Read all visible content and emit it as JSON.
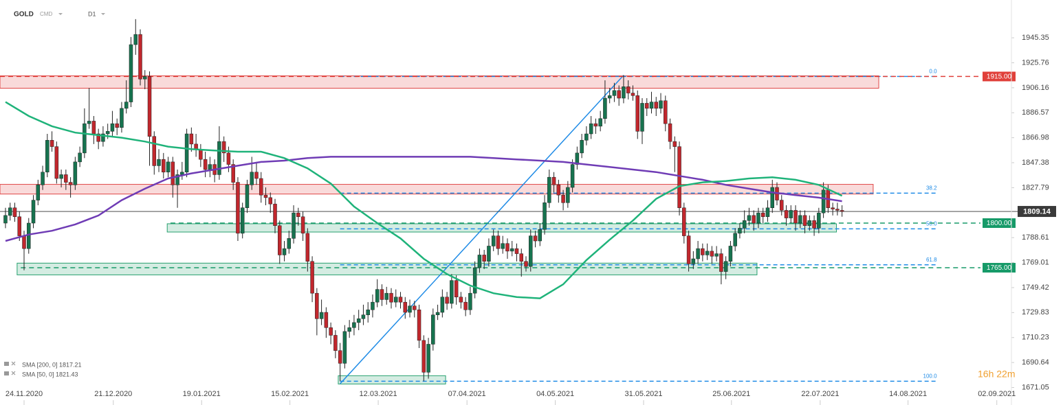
{
  "chart_data": {
    "type": "candlestick",
    "symbol": "GOLD",
    "source": "CMD",
    "timeframe": "D1",
    "timer": "16h 22m",
    "xlim": [
      -1.18,
      216.3
    ],
    "ylim": [
      1665.4,
      1975
    ],
    "yticks": [
      1945.35,
      1925.76,
      1906.16,
      1886.57,
      1866.98,
      1847.38,
      1827.79,
      1788.61,
      1769.01,
      1749.42,
      1729.83,
      1710.23,
      1690.64,
      1671.05
    ],
    "xticks": [
      {
        "value": 4,
        "label": "24.11.2020"
      },
      {
        "value": 23.2,
        "label": "21.12.2020"
      },
      {
        "value": 42.2,
        "label": "19.01.2021"
      },
      {
        "value": 61.2,
        "label": "15.02.2021"
      },
      {
        "value": 80.2,
        "label": "12.03.2021"
      },
      {
        "value": 99.3,
        "label": "07.04.2021"
      },
      {
        "value": 118.3,
        "label": "04.05.2021"
      },
      {
        "value": 137.3,
        "label": "31.05.2021"
      },
      {
        "value": 156.2,
        "label": "25.06.2021"
      },
      {
        "value": 175.3,
        "label": "22.07.2021"
      },
      {
        "value": 194.2,
        "label": "14.08.2021"
      },
      {
        "value": 213.3,
        "label": "02.09.2021"
      }
    ],
    "up_color": "#17734f",
    "down_color": "#c1272d",
    "ohlc": [
      [
        1800,
        1812,
        1796,
        1806
      ],
      [
        1806,
        1816,
        1802,
        1812
      ],
      [
        1812,
        1816,
        1801,
        1805
      ],
      [
        1805,
        1809,
        1786,
        1790
      ],
      [
        1790,
        1794,
        1763,
        1780
      ],
      [
        1780,
        1804,
        1776,
        1800
      ],
      [
        1800,
        1822,
        1796,
        1818
      ],
      [
        1818,
        1834,
        1814,
        1830
      ],
      [
        1830,
        1845,
        1826,
        1840
      ],
      [
        1840,
        1870,
        1836,
        1865
      ],
      [
        1865,
        1872,
        1856,
        1860
      ],
      [
        1860,
        1864,
        1831,
        1835
      ],
      [
        1835,
        1842,
        1828,
        1838
      ],
      [
        1838,
        1842,
        1826,
        1832
      ],
      [
        1832,
        1836,
        1820,
        1830
      ],
      [
        1830,
        1852,
        1826,
        1848
      ],
      [
        1848,
        1860,
        1844,
        1855
      ],
      [
        1855,
        1890,
        1851,
        1878
      ],
      [
        1878,
        1906,
        1874,
        1880
      ],
      [
        1880,
        1884,
        1862,
        1870
      ],
      [
        1870,
        1874,
        1858,
        1864
      ],
      [
        1864,
        1876,
        1860,
        1870
      ],
      [
        1870,
        1878,
        1866,
        1872
      ],
      [
        1872,
        1888,
        1868,
        1878
      ],
      [
        1878,
        1882,
        1869,
        1875
      ],
      [
        1875,
        1895,
        1871,
        1890
      ],
      [
        1890,
        1912,
        1886,
        1895
      ],
      [
        1895,
        1946,
        1891,
        1940
      ],
      [
        1940,
        1960,
        1932,
        1948
      ],
      [
        1948,
        1952,
        1908,
        1913
      ],
      [
        1913,
        1920,
        1905,
        1915
      ],
      [
        1915,
        1919,
        1845,
        1868
      ],
      [
        1868,
        1872,
        1838,
        1845
      ],
      [
        1845,
        1858,
        1840,
        1850
      ],
      [
        1850,
        1855,
        1835,
        1840
      ],
      [
        1840,
        1852,
        1836,
        1848
      ],
      [
        1848,
        1852,
        1820,
        1830
      ],
      [
        1830,
        1842,
        1812,
        1838
      ],
      [
        1838,
        1848,
        1834,
        1840
      ],
      [
        1840,
        1874,
        1836,
        1870
      ],
      [
        1870,
        1875,
        1856,
        1862
      ],
      [
        1862,
        1870,
        1852,
        1858
      ],
      [
        1858,
        1862,
        1844,
        1850
      ],
      [
        1850,
        1856,
        1836,
        1842
      ],
      [
        1842,
        1852,
        1836,
        1846
      ],
      [
        1846,
        1850,
        1832,
        1838
      ],
      [
        1838,
        1876,
        1834,
        1864
      ],
      [
        1864,
        1868,
        1848,
        1855
      ],
      [
        1855,
        1860,
        1840,
        1846
      ],
      [
        1846,
        1850,
        1826,
        1832
      ],
      [
        1832,
        1836,
        1786,
        1792
      ],
      [
        1792,
        1816,
        1788,
        1812
      ],
      [
        1812,
        1834,
        1808,
        1830
      ],
      [
        1830,
        1852,
        1826,
        1840
      ],
      [
        1840,
        1848,
        1830,
        1835
      ],
      [
        1835,
        1840,
        1816,
        1822
      ],
      [
        1822,
        1828,
        1814,
        1820
      ],
      [
        1820,
        1824,
        1808,
        1815
      ],
      [
        1815,
        1819,
        1792,
        1798
      ],
      [
        1798,
        1802,
        1768,
        1775
      ],
      [
        1775,
        1786,
        1770,
        1780
      ],
      [
        1780,
        1794,
        1776,
        1788
      ],
      [
        1788,
        1814,
        1784,
        1808
      ],
      [
        1808,
        1812,
        1798,
        1805
      ],
      [
        1805,
        1809,
        1786,
        1792
      ],
      [
        1792,
        1796,
        1762,
        1770
      ],
      [
        1770,
        1774,
        1738,
        1745
      ],
      [
        1745,
        1749,
        1712,
        1725
      ],
      [
        1725,
        1740,
        1720,
        1730
      ],
      [
        1730,
        1734,
        1710,
        1718
      ],
      [
        1718,
        1722,
        1705,
        1712
      ],
      [
        1712,
        1716,
        1694,
        1700
      ],
      [
        1700,
        1706,
        1676,
        1690
      ],
      [
        1690,
        1720,
        1686,
        1715
      ],
      [
        1715,
        1724,
        1710,
        1718
      ],
      [
        1718,
        1728,
        1712,
        1722
      ],
      [
        1722,
        1732,
        1716,
        1725
      ],
      [
        1725,
        1736,
        1720,
        1728
      ],
      [
        1728,
        1738,
        1722,
        1732
      ],
      [
        1732,
        1744,
        1726,
        1738
      ],
      [
        1738,
        1756,
        1734,
        1748
      ],
      [
        1748,
        1752,
        1735,
        1740
      ],
      [
        1740,
        1750,
        1736,
        1745
      ],
      [
        1745,
        1749,
        1733,
        1738
      ],
      [
        1738,
        1748,
        1734,
        1742
      ],
      [
        1742,
        1746,
        1733,
        1738
      ],
      [
        1738,
        1742,
        1725,
        1730
      ],
      [
        1730,
        1740,
        1726,
        1735
      ],
      [
        1735,
        1739,
        1726,
        1732
      ],
      [
        1732,
        1736,
        1702,
        1708
      ],
      [
        1708,
        1712,
        1676,
        1683
      ],
      [
        1683,
        1710,
        1678,
        1705
      ],
      [
        1705,
        1733,
        1700,
        1728
      ],
      [
        1728,
        1736,
        1724,
        1730
      ],
      [
        1730,
        1748,
        1726,
        1742
      ],
      [
        1742,
        1746,
        1732,
        1737
      ],
      [
        1737,
        1760,
        1733,
        1755
      ],
      [
        1755,
        1759,
        1736,
        1742
      ],
      [
        1742,
        1746,
        1733,
        1738
      ],
      [
        1738,
        1742,
        1727,
        1732
      ],
      [
        1732,
        1750,
        1728,
        1745
      ],
      [
        1745,
        1770,
        1741,
        1765
      ],
      [
        1765,
        1780,
        1761,
        1775
      ],
      [
        1775,
        1779,
        1764,
        1770
      ],
      [
        1770,
        1788,
        1766,
        1782
      ],
      [
        1782,
        1795,
        1778,
        1790
      ],
      [
        1790,
        1794,
        1775,
        1780
      ],
      [
        1780,
        1790,
        1776,
        1784
      ],
      [
        1784,
        1788,
        1772,
        1778
      ],
      [
        1778,
        1786,
        1774,
        1780
      ],
      [
        1780,
        1784,
        1770,
        1776
      ],
      [
        1776,
        1780,
        1758,
        1770
      ],
      [
        1770,
        1774,
        1762,
        1766
      ],
      [
        1766,
        1795,
        1762,
        1790
      ],
      [
        1790,
        1794,
        1781,
        1786
      ],
      [
        1786,
        1800,
        1782,
        1795
      ],
      [
        1795,
        1822,
        1791,
        1816
      ],
      [
        1816,
        1842,
        1812,
        1836
      ],
      [
        1836,
        1840,
        1824,
        1830
      ],
      [
        1830,
        1834,
        1816,
        1822
      ],
      [
        1822,
        1826,
        1810,
        1816
      ],
      [
        1816,
        1833,
        1812,
        1828
      ],
      [
        1828,
        1850,
        1824,
        1846
      ],
      [
        1846,
        1860,
        1842,
        1855
      ],
      [
        1855,
        1870,
        1851,
        1865
      ],
      [
        1865,
        1876,
        1861,
        1870
      ],
      [
        1870,
        1884,
        1866,
        1878
      ],
      [
        1878,
        1882,
        1870,
        1876
      ],
      [
        1876,
        1888,
        1872,
        1882
      ],
      [
        1882,
        1912,
        1878,
        1898
      ],
      [
        1898,
        1906,
        1894,
        1900
      ],
      [
        1900,
        1910,
        1895,
        1904
      ],
      [
        1904,
        1908,
        1892,
        1898
      ],
      [
        1898,
        1916,
        1894,
        1907
      ],
      [
        1907,
        1912,
        1897,
        1902
      ],
      [
        1902,
        1908,
        1896,
        1900
      ],
      [
        1900,
        1904,
        1866,
        1872
      ],
      [
        1872,
        1898,
        1862,
        1894
      ],
      [
        1894,
        1898,
        1884,
        1890
      ],
      [
        1890,
        1903,
        1886,
        1895
      ],
      [
        1895,
        1899,
        1884,
        1890
      ],
      [
        1890,
        1902,
        1886,
        1896
      ],
      [
        1896,
        1900,
        1872,
        1878
      ],
      [
        1878,
        1882,
        1858,
        1864
      ],
      [
        1864,
        1868,
        1840,
        1860
      ],
      [
        1860,
        1864,
        1806,
        1812
      ],
      [
        1812,
        1816,
        1784,
        1790
      ],
      [
        1790,
        1794,
        1762,
        1768
      ],
      [
        1768,
        1778,
        1764,
        1772
      ],
      [
        1772,
        1786,
        1768,
        1780
      ],
      [
        1780,
        1784,
        1770,
        1775
      ],
      [
        1775,
        1784,
        1771,
        1778
      ],
      [
        1778,
        1782,
        1768,
        1774
      ],
      [
        1774,
        1782,
        1770,
        1776
      ],
      [
        1776,
        1780,
        1752,
        1762
      ],
      [
        1762,
        1774,
        1756,
        1770
      ],
      [
        1770,
        1786,
        1766,
        1782
      ],
      [
        1782,
        1796,
        1778,
        1792
      ],
      [
        1792,
        1800,
        1788,
        1796
      ],
      [
        1796,
        1810,
        1792,
        1802
      ],
      [
        1802,
        1812,
        1798,
        1806
      ],
      [
        1806,
        1810,
        1794,
        1800
      ],
      [
        1800,
        1812,
        1796,
        1808
      ],
      [
        1808,
        1812,
        1800,
        1805
      ],
      [
        1805,
        1818,
        1801,
        1812
      ],
      [
        1812,
        1834,
        1808,
        1828
      ],
      [
        1828,
        1832,
        1814,
        1818
      ],
      [
        1818,
        1822,
        1806,
        1810
      ],
      [
        1810,
        1814,
        1798,
        1804
      ],
      [
        1804,
        1814,
        1800,
        1810
      ],
      [
        1810,
        1814,
        1794,
        1800
      ],
      [
        1800,
        1810,
        1796,
        1806
      ],
      [
        1806,
        1810,
        1792,
        1798
      ],
      [
        1798,
        1806,
        1794,
        1802
      ],
      [
        1802,
        1806,
        1790,
        1796
      ],
      [
        1796,
        1812,
        1792,
        1808
      ],
      [
        1808,
        1832,
        1804,
        1826
      ],
      [
        1826,
        1830,
        1808,
        1812
      ],
      [
        1812,
        1816,
        1806,
        1811
      ],
      [
        1811,
        1816,
        1806,
        1810
      ],
      [
        1810,
        1814,
        1805,
        1809.14
      ]
    ],
    "series": [
      {
        "name": "SMA [200, 0] 1817.21",
        "color": "#6f3cb5",
        "x": [
          0,
          5,
          10,
          15,
          20,
          25,
          30,
          35,
          40,
          45,
          50,
          55,
          60,
          65,
          70,
          75,
          80,
          85,
          90,
          95,
          100,
          105,
          110,
          115,
          120,
          125,
          130,
          135,
          140,
          145,
          150,
          155,
          160,
          165,
          170,
          175,
          180
        ],
        "values": [
          1786,
          1791,
          1794,
          1799,
          1806,
          1818,
          1827,
          1835,
          1839,
          1842,
          1845,
          1848,
          1849,
          1851,
          1852,
          1852,
          1852,
          1852,
          1852,
          1852,
          1852,
          1851,
          1850,
          1849,
          1848,
          1846,
          1844,
          1842,
          1840,
          1837,
          1834,
          1830,
          1827,
          1824,
          1822,
          1820,
          1817.21
        ]
      },
      {
        "name": "SMA [50, 0] 1821.43",
        "color": "#1fb37a",
        "x": [
          0,
          5,
          10,
          15,
          20,
          25,
          30,
          35,
          40,
          45,
          50,
          55,
          60,
          65,
          70,
          75,
          80,
          85,
          90,
          95,
          100,
          105,
          110,
          115,
          120,
          125,
          130,
          135,
          140,
          145,
          150,
          155,
          160,
          165,
          170,
          175,
          180
        ],
        "values": [
          1895,
          1884,
          1876,
          1871,
          1869,
          1867,
          1864,
          1860,
          1858,
          1857,
          1856,
          1856,
          1851,
          1843,
          1831,
          1813,
          1800,
          1788,
          1772,
          1760,
          1751,
          1745,
          1742,
          1741,
          1752,
          1771,
          1787,
          1802,
          1819,
          1829,
          1832,
          1833,
          1835,
          1836,
          1834,
          1830,
          1821.43
        ]
      }
    ],
    "zones": [
      {
        "x": [
          -1.18,
          187.9
        ],
        "y": [
          1905.8,
          1915.5
        ],
        "color": "#e04646"
      },
      {
        "x": [
          -1.18,
          186.7
        ],
        "y": [
          1822.8,
          1830.4
        ],
        "color": "#e04646"
      },
      {
        "x": [
          34.8,
          178.8
        ],
        "y": [
          1793,
          1799.5
        ],
        "color": "#26a06e"
      },
      {
        "x": [
          2.5,
          161.7
        ],
        "y": [
          1759.4,
          1768.6
        ],
        "color": "#26a06e"
      },
      {
        "x": [
          71.6,
          94.7
        ],
        "y": [
          1673.8,
          1680.3
        ],
        "color": "#26a06e"
      }
    ],
    "levels": [
      {
        "value": 1915,
        "label": "1915.00",
        "from": -1.18,
        "color": "#e0403a"
      },
      {
        "value": 1800,
        "label": "1800.00",
        "from": 35.5,
        "color": "#169a68"
      },
      {
        "value": 1765,
        "label": "1765.00",
        "from": 3.3,
        "color": "#169a68"
      }
    ],
    "current": {
      "value": 1809.14,
      "label": "1809.14"
    },
    "fibonacci": {
      "x": [
        72,
        200.7
      ],
      "color": "#1e8be6",
      "levels": [
        {
          "value": 1915,
          "label": "0.0"
        },
        {
          "value": 1823.5,
          "label": "38.2"
        },
        {
          "value": 1795.5,
          "label": "50.0"
        },
        {
          "value": 1767.3,
          "label": "61.8"
        },
        {
          "value": 1676,
          "label": "100.0"
        }
      ]
    },
    "trendline": {
      "x": [
        72,
        133
      ],
      "y": [
        1674,
        1916
      ],
      "color": "#1e8be6"
    }
  }
}
